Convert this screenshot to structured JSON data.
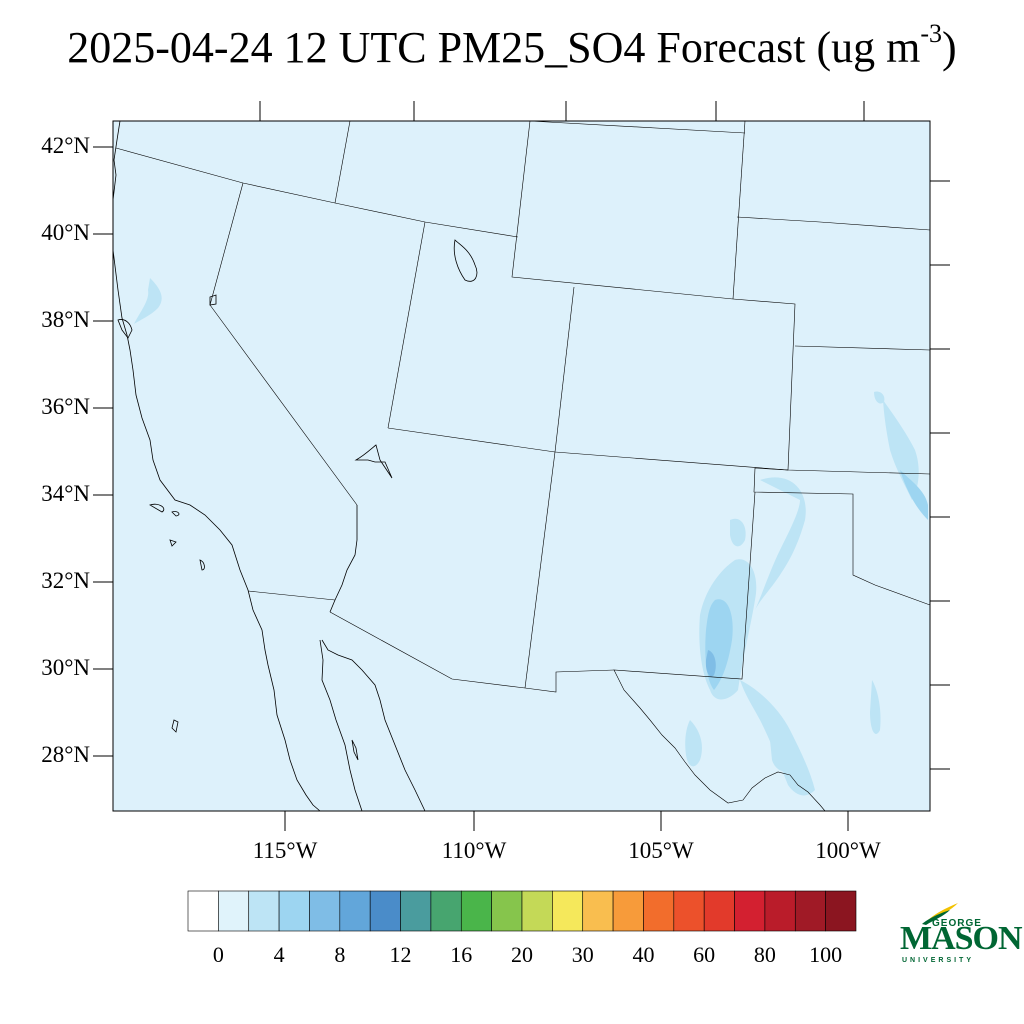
{
  "title": {
    "main": "2025-04-24 12 UTC PM25_SO4 Forecast (ug m",
    "sup": "-3",
    "close": ")"
  },
  "lat_labels": [
    "42°N",
    "40°N",
    "38°N",
    "36°N",
    "34°N",
    "32°N",
    "30°N",
    "28°N"
  ],
  "lon_labels": [
    "115°W",
    "110°W",
    "105°W",
    "100°W"
  ],
  "colorbar": {
    "colors": [
      "#ffffff",
      "#e0f3fb",
      "#bde4f5",
      "#9dd5f1",
      "#7fbde6",
      "#62a6da",
      "#4a8cc9",
      "#4a9c9e",
      "#47a56f",
      "#4ab54a",
      "#86c54c",
      "#c4d957",
      "#f5e85b",
      "#f9be4f",
      "#f79b3a",
      "#f26d2c",
      "#ec512b",
      "#e23a2b",
      "#d32030",
      "#ba1c2a",
      "#a01a26",
      "#8b1520"
    ],
    "labels": [
      "0",
      "4",
      "8",
      "12",
      "16",
      "20",
      "30",
      "40",
      "60",
      "80",
      "100"
    ]
  },
  "logo": {
    "top": "GEORGE",
    "name": "MASON",
    "bottom": "UNIVERSITY"
  },
  "background_color": "#ddf1fb",
  "boundary_color": "#000000"
}
